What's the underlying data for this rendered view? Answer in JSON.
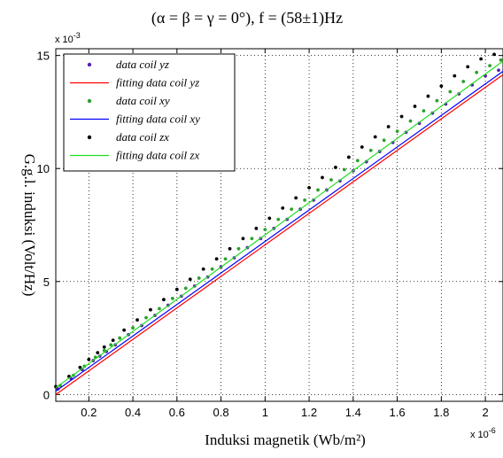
{
  "chart_data": {
    "type": "scatter",
    "title": "(α = β = γ = 0°), f = (58±1)Hz",
    "xlabel": "Induksi magnetik (Wb/m²)",
    "ylabel": "G.g.l. induksi (Volt/Hz)",
    "x_exponent": "x 10",
    "x_exponent_power": "-6",
    "y_exponent": "x 10",
    "y_exponent_power": "-3",
    "xlim": [
      0.05,
      2.08
    ],
    "ylim": [
      -0.3,
      15.3
    ],
    "x_ticks": [
      0.2,
      0.4,
      0.6,
      0.8,
      1,
      1.2,
      1.4,
      1.6,
      1.8,
      2
    ],
    "x_tick_labels": [
      "0.2",
      "0.4",
      "0.6",
      "0.8",
      "1",
      "1.2",
      "1.4",
      "1.6",
      "1.8",
      "2"
    ],
    "y_ticks": [
      0,
      5,
      10,
      15
    ],
    "y_tick_labels": [
      "0",
      "5",
      "10",
      "15"
    ],
    "grid": true,
    "legend_position": "top-left",
    "series": [
      {
        "name": "data coil yz",
        "kind": "points",
        "color": "#5a1fb0",
        "marker": "dot",
        "x": [
          0.06,
          0.12,
          0.17,
          0.22,
          0.25,
          0.28,
          0.32,
          0.38,
          0.44,
          0.5,
          0.56,
          0.62,
          0.68,
          0.74,
          0.8,
          0.86,
          0.92,
          0.98,
          1.04,
          1.1,
          1.16,
          1.22,
          1.28,
          1.34,
          1.4,
          1.46,
          1.52,
          1.58,
          1.64,
          1.7,
          1.76,
          1.82,
          1.88,
          1.94,
          2.0,
          2.06
        ],
        "y": [
          0.25,
          0.7,
          1.1,
          1.5,
          1.7,
          1.9,
          2.2,
          2.65,
          3.05,
          3.5,
          3.95,
          4.35,
          4.8,
          5.2,
          5.65,
          6.05,
          6.5,
          6.9,
          7.35,
          7.75,
          8.2,
          8.6,
          9.05,
          9.45,
          9.9,
          10.3,
          10.75,
          11.15,
          11.6,
          12.0,
          12.45,
          12.85,
          13.3,
          13.7,
          14.1,
          14.35
        ]
      },
      {
        "name": "fitting data coil yz",
        "kind": "line",
        "color": "#ff0000",
        "x": [
          0.05,
          2.08
        ],
        "y": [
          0.0,
          14.15
        ]
      },
      {
        "name": "data coil xy",
        "kind": "points",
        "color": "#2ca02c",
        "marker": "dot",
        "x": [
          0.07,
          0.13,
          0.18,
          0.23,
          0.27,
          0.3,
          0.34,
          0.4,
          0.46,
          0.52,
          0.58,
          0.64,
          0.7,
          0.76,
          0.82,
          0.88,
          0.94,
          1.0,
          1.06,
          1.12,
          1.18,
          1.24,
          1.3,
          1.36,
          1.42,
          1.48,
          1.54,
          1.6,
          1.66,
          1.72,
          1.78,
          1.84,
          1.9,
          1.96,
          2.02,
          2.07
        ],
        "y": [
          0.4,
          0.85,
          1.25,
          1.65,
          1.95,
          2.2,
          2.5,
          2.95,
          3.4,
          3.8,
          4.25,
          4.7,
          5.15,
          5.55,
          6.0,
          6.45,
          6.9,
          7.3,
          7.75,
          8.2,
          8.6,
          9.05,
          9.5,
          9.95,
          10.35,
          10.8,
          11.25,
          11.65,
          12.1,
          12.55,
          13.0,
          13.4,
          13.85,
          14.25,
          14.55,
          14.8
        ]
      },
      {
        "name": "fitting data coil xy",
        "kind": "line",
        "color": "#0000ff",
        "x": [
          0.05,
          2.08
        ],
        "y": [
          0.15,
          14.3
        ]
      },
      {
        "name": "data coil zx",
        "kind": "points",
        "color": "#000000",
        "marker": "dot",
        "x": [
          0.05,
          0.11,
          0.16,
          0.2,
          0.24,
          0.27,
          0.31,
          0.36,
          0.42,
          0.48,
          0.54,
          0.6,
          0.66,
          0.72,
          0.78,
          0.84,
          0.9,
          0.96,
          1.02,
          1.08,
          1.14,
          1.2,
          1.26,
          1.32,
          1.38,
          1.44,
          1.5,
          1.56,
          1.62,
          1.68,
          1.74,
          1.8,
          1.86,
          1.92,
          1.98,
          2.04
        ],
        "y": [
          0.35,
          0.8,
          1.2,
          1.55,
          1.85,
          2.1,
          2.4,
          2.85,
          3.3,
          3.75,
          4.2,
          4.65,
          5.1,
          5.55,
          6.0,
          6.45,
          6.9,
          7.35,
          7.8,
          8.25,
          8.7,
          9.15,
          9.6,
          10.05,
          10.5,
          10.95,
          11.4,
          11.85,
          12.3,
          12.75,
          13.2,
          13.65,
          14.1,
          14.5,
          14.85,
          15.05
        ]
      },
      {
        "name": "fitting data coil zx",
        "kind": "line",
        "color": "#22dd22",
        "x": [
          0.05,
          2.08
        ],
        "y": [
          0.3,
          14.75
        ]
      }
    ]
  }
}
